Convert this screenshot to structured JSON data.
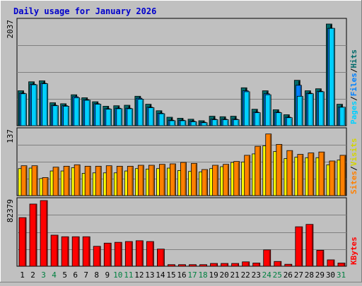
{
  "title": "Daily usage for January 2026",
  "colors": {
    "background": "#c0c0c0",
    "title": "#0000cc",
    "hits": "#00c0c0",
    "files": "#0080ff",
    "pages": "#00d0ff",
    "sites": "#ff8000",
    "visits": "#ffff00",
    "kbytes": "#ff0000",
    "weekend": "#008040"
  },
  "chart_data": [
    {
      "type": "bar",
      "panel": "top",
      "ymax_label": "2037",
      "legend": [
        "Pages",
        "Files",
        "Hits"
      ],
      "categories": [
        "1",
        "2",
        "3",
        "4",
        "5",
        "6",
        "7",
        "8",
        "9",
        "10",
        "11",
        "12",
        "13",
        "14",
        "15",
        "16",
        "17",
        "18",
        "19",
        "20",
        "21",
        "22",
        "23",
        "24",
        "25",
        "26",
        "27",
        "28",
        "29",
        "30",
        "31"
      ],
      "weekend_days": [
        "3",
        "4",
        "10",
        "11",
        "17",
        "18",
        "24",
        "25",
        "31"
      ],
      "ylim": [
        0,
        2037
      ],
      "series": [
        {
          "name": "Hits",
          "values": [
            700,
            880,
            900,
            460,
            440,
            620,
            560,
            480,
            390,
            400,
            410,
            590,
            430,
            300,
            170,
            150,
            130,
            100,
            190,
            180,
            190,
            760,
            330,
            700,
            320,
            220,
            910,
            700,
            740,
            2037,
            430
          ]
        },
        {
          "name": "Files",
          "values": [
            650,
            830,
            850,
            410,
            400,
            580,
            520,
            440,
            340,
            350,
            350,
            550,
            370,
            250,
            110,
            110,
            90,
            70,
            130,
            130,
            130,
            700,
            270,
            640,
            270,
            170,
            810,
            650,
            690,
            1950,
            370
          ]
        },
        {
          "name": "Pages",
          "values": [
            640,
            820,
            840,
            400,
            390,
            560,
            510,
            430,
            330,
            340,
            340,
            530,
            360,
            240,
            100,
            100,
            80,
            60,
            120,
            120,
            120,
            680,
            260,
            620,
            260,
            160,
            590,
            640,
            680,
            1950,
            370
          ]
        }
      ]
    },
    {
      "type": "bar",
      "panel": "middle",
      "ymax_label": "137",
      "legend": [
        "Sites",
        "Visits"
      ],
      "categories": [
        "1",
        "2",
        "3",
        "4",
        "5",
        "6",
        "7",
        "8",
        "9",
        "10",
        "11",
        "12",
        "13",
        "14",
        "15",
        "16",
        "17",
        "18",
        "19",
        "20",
        "21",
        "22",
        "23",
        "24",
        "25",
        "26",
        "27",
        "28",
        "29",
        "30",
        "31"
      ],
      "ylim": [
        0,
        137
      ],
      "series": [
        {
          "name": "Visits",
          "values": [
            57,
            58,
            36,
            52,
            52,
            59,
            47,
            48,
            48,
            48,
            52,
            57,
            56,
            57,
            58,
            53,
            51,
            50,
            57,
            61,
            70,
            71,
            88,
            105,
            93,
            78,
            81,
            80,
            80,
            65,
            75
          ]
        },
        {
          "name": "Sites",
          "values": [
            63,
            63,
            38,
            60,
            62,
            65,
            62,
            62,
            63,
            62,
            62,
            64,
            64,
            66,
            67,
            70,
            68,
            55,
            64,
            66,
            72,
            85,
            104,
            130,
            108,
            95,
            87,
            90,
            92,
            73,
            85
          ]
        }
      ]
    },
    {
      "type": "bar",
      "panel": "bottom",
      "ymax_label": "82379",
      "legend": [
        "KBytes"
      ],
      "categories": [
        "1",
        "2",
        "3",
        "4",
        "5",
        "6",
        "7",
        "8",
        "9",
        "10",
        "11",
        "12",
        "13",
        "14",
        "15",
        "16",
        "17",
        "18",
        "19",
        "20",
        "21",
        "22",
        "23",
        "24",
        "25",
        "26",
        "27",
        "28",
        "29",
        "30",
        "31"
      ],
      "ylim": [
        0,
        82379
      ],
      "series": [
        {
          "name": "KBytes",
          "values": [
            61000,
            78000,
            82379,
            39000,
            37000,
            37000,
            37000,
            25000,
            29000,
            30000,
            31000,
            32000,
            31000,
            21500,
            2000,
            2000,
            2000,
            2000,
            3500,
            3500,
            3500,
            5500,
            4000,
            20500,
            6000,
            2500,
            49500,
            52500,
            20000,
            8000,
            4000
          ]
        }
      ]
    }
  ]
}
